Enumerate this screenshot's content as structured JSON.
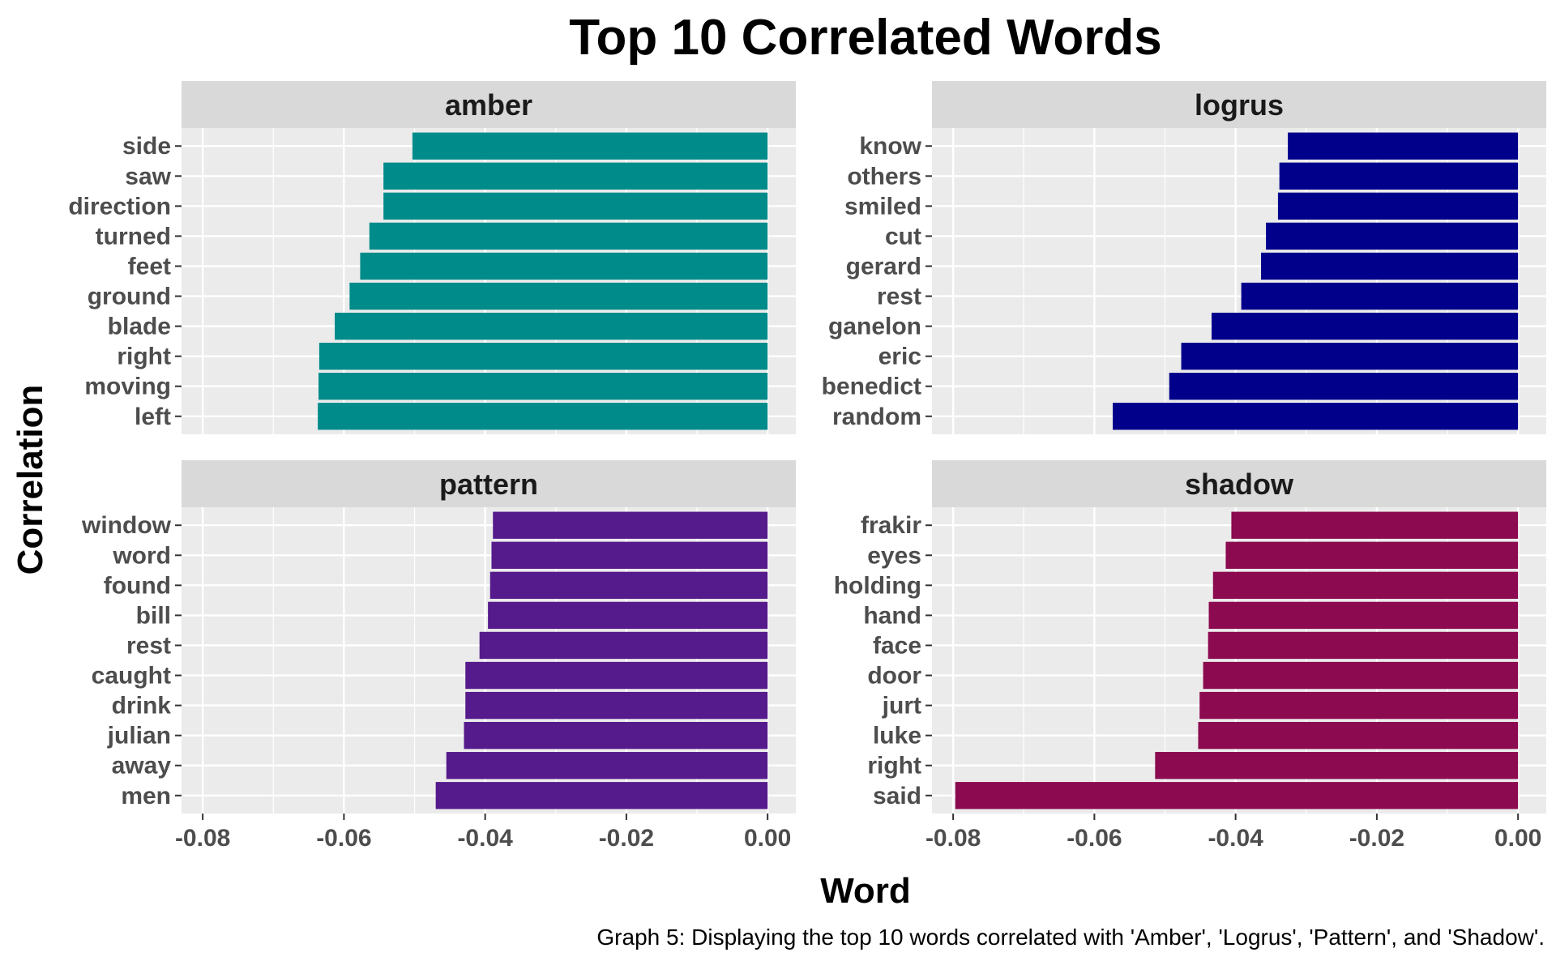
{
  "chart_data": {
    "type": "bar",
    "orientation": "horizontal",
    "title": "Top 10 Correlated Words",
    "xlabel": "Word",
    "ylabel": "Correlation",
    "caption": "Graph 5: Displaying the top 10 words correlated with 'Amber', 'Logrus', 'Pattern', and 'Shadow'.",
    "xlim": [
      -0.083,
      0.004
    ],
    "x_ticks": [
      -0.08,
      -0.06,
      -0.04,
      -0.02,
      0.0
    ],
    "x_tick_labels": [
      "-0.08",
      "-0.06",
      "-0.04",
      "-0.02",
      "0.00"
    ],
    "grid": true,
    "legend": "none",
    "panels": [
      {
        "name": "amber",
        "color": "#008B8B",
        "categories": [
          "side",
          "saw",
          "direction",
          "turned",
          "feet",
          "ground",
          "blade",
          "right",
          "moving",
          "left"
        ],
        "values": [
          -0.0503,
          -0.0544,
          -0.0544,
          -0.0564,
          -0.0577,
          -0.0592,
          -0.0613,
          -0.0635,
          -0.0636,
          -0.0637
        ]
      },
      {
        "name": "logrus",
        "color": "#00008B",
        "categories": [
          "know",
          "others",
          "smiled",
          "cut",
          "gerard",
          "rest",
          "ganelon",
          "eric",
          "benedict",
          "random"
        ],
        "values": [
          -0.0326,
          -0.0338,
          -0.034,
          -0.0357,
          -0.0364,
          -0.0392,
          -0.0434,
          -0.0477,
          -0.0494,
          -0.0574
        ]
      },
      {
        "name": "pattern",
        "color": "#551A8B",
        "categories": [
          "window",
          "word",
          "found",
          "bill",
          "rest",
          "caught",
          "drink",
          "julian",
          "away",
          "men"
        ],
        "values": [
          -0.0389,
          -0.0391,
          -0.0393,
          -0.0396,
          -0.0408,
          -0.0428,
          -0.0428,
          -0.043,
          -0.0455,
          -0.047
        ]
      },
      {
        "name": "shadow",
        "color": "#8B0A50",
        "categories": [
          "frakir",
          "eyes",
          "holding",
          "hand",
          "face",
          "door",
          "jurt",
          "luke",
          "right",
          "said"
        ],
        "values": [
          -0.0406,
          -0.0414,
          -0.0432,
          -0.0438,
          -0.0439,
          -0.0446,
          -0.0451,
          -0.0453,
          -0.0514,
          -0.0797
        ]
      }
    ]
  }
}
